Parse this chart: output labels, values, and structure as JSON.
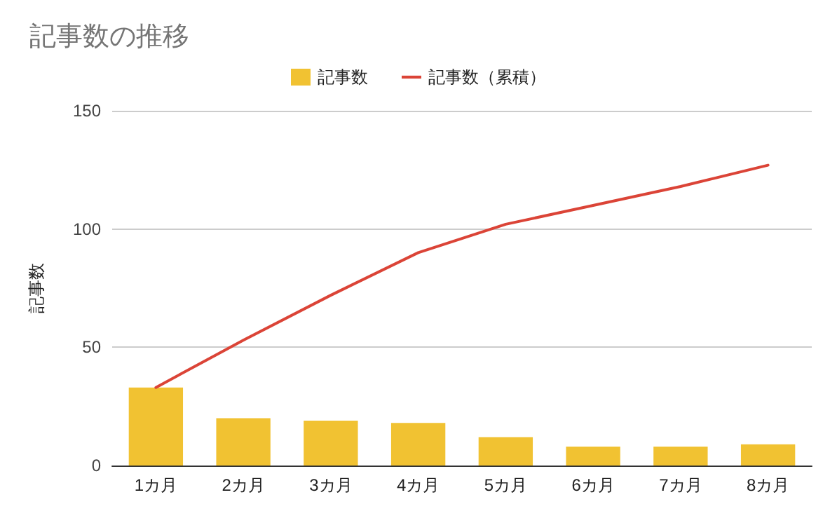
{
  "chart_data": {
    "type": "bar",
    "title": "記事数の推移",
    "ylabel": "記事数",
    "categories": [
      "1カ月",
      "2カ月",
      "3カ月",
      "4カ月",
      "5カ月",
      "6カ月",
      "7カ月",
      "8カ月"
    ],
    "series": [
      {
        "name": "記事数",
        "color": "#f1c232",
        "values": [
          33,
          20,
          19,
          18,
          12,
          8,
          8,
          9
        ]
      },
      {
        "name": "記事数（累積）",
        "type": "line",
        "color": "#db4437",
        "values": [
          33,
          53,
          72,
          90,
          102,
          110,
          118,
          127
        ]
      }
    ],
    "ylim": [
      0,
      150
    ],
    "yticks": [
      0,
      50,
      100,
      150
    ],
    "grid": "y",
    "legend": "top",
    "marker": "none",
    "line_style": "solid"
  }
}
